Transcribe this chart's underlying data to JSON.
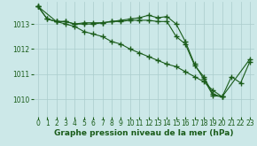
{
  "background_color": "#cce8e8",
  "grid_color": "#aacccc",
  "line_color": "#1a5c1a",
  "marker": "+",
  "marker_size": 4,
  "marker_ew": 1.0,
  "line_width": 0.8,
  "ylim": [
    1009.3,
    1013.9
  ],
  "xlim": [
    -0.5,
    23.5
  ],
  "yticks": [
    1010,
    1011,
    1012,
    1013
  ],
  "xticks": [
    0,
    1,
    2,
    3,
    4,
    5,
    6,
    7,
    8,
    9,
    10,
    11,
    12,
    13,
    14,
    15,
    16,
    17,
    18,
    19,
    20,
    21,
    22,
    23
  ],
  "xlabel": "Graphe pression niveau de la mer (hPa)",
  "xlabel_fontsize": 6.5,
  "tick_fontsize": 5.5,
  "series": [
    [
      1013.7,
      1013.2,
      1013.1,
      1013.1,
      1013.0,
      1013.05,
      1013.05,
      1013.05,
      1013.1,
      1013.15,
      1013.2,
      1013.25,
      1013.35,
      1013.25,
      1013.3,
      1013.0,
      1012.3,
      1011.4,
      1010.8,
      1010.15,
      1010.1,
      null,
      null,
      1011.6
    ],
    [
      1013.7,
      1013.2,
      1013.1,
      1013.1,
      1013.0,
      1013.0,
      1013.0,
      1013.05,
      1013.1,
      1013.1,
      1013.15,
      1013.15,
      1013.15,
      1013.1,
      1013.1,
      1012.5,
      1012.2,
      1011.35,
      1010.9,
      1010.2,
      1010.1,
      1010.9,
      1010.65,
      1011.5
    ],
    [
      1013.7,
      null,
      1013.1,
      1013.0,
      1012.9,
      1012.7,
      1012.6,
      1012.5,
      1012.3,
      1012.2,
      1012.0,
      1011.85,
      1011.7,
      1011.55,
      1011.4,
      1011.3,
      1011.1,
      1010.9,
      1010.7,
      1010.35,
      1010.1,
      null,
      null,
      null
    ]
  ]
}
